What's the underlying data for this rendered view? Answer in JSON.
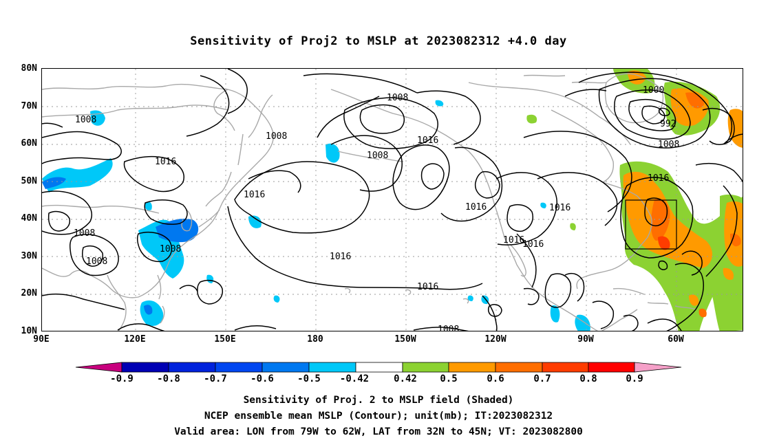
{
  "title": "Sensitivity of Proj2 to MSLP at 2023082312 +4.0 day",
  "map": {
    "lat_labels": [
      "80N",
      "70N",
      "60N",
      "50N",
      "40N",
      "30N",
      "20N",
      "10N"
    ],
    "lon_labels": [
      "90E",
      "120E",
      "150E",
      "180",
      "150W",
      "120W",
      "90W",
      "60W"
    ],
    "contour_labels": [
      "1008",
      "1008",
      "1016",
      "1008",
      "1008",
      "1008",
      "1008",
      "1016",
      "1008",
      "1016",
      "1016",
      "1016",
      "1016",
      "1016",
      "1016",
      "1000",
      "992",
      "1008",
      "1016",
      "1016",
      "1008"
    ],
    "colors": {
      "coast": "#a8a8a8",
      "contour": "#000000",
      "grid": "#9a9a9a",
      "valid_box": "#000000"
    }
  },
  "colorbar": {
    "labels": [
      "-0.9",
      "-0.8",
      "-0.7",
      "-0.6",
      "-0.5",
      "-0.42",
      "0.42",
      "0.5",
      "0.6",
      "0.7",
      "0.8",
      "0.9"
    ],
    "colors": [
      "#c8007e",
      "#0000b4",
      "#0022dc",
      "#0046f0",
      "#0078f0",
      "#00c8f8",
      "#ffffff",
      "#8cd232",
      "#ff9a00",
      "#ff6e00",
      "#ff3c00",
      "#ff0000",
      "#f5a0c8"
    ]
  },
  "captions": [
    "Sensitivity of Proj. 2 to MSLP field (Shaded)",
    "NCEP ensemble mean MSLP (Contour); unit(mb); IT:2023082312",
    "Valid area: LON from 79W to 62W, LAT from 32N to 45N; VT: 2023082800"
  ]
}
